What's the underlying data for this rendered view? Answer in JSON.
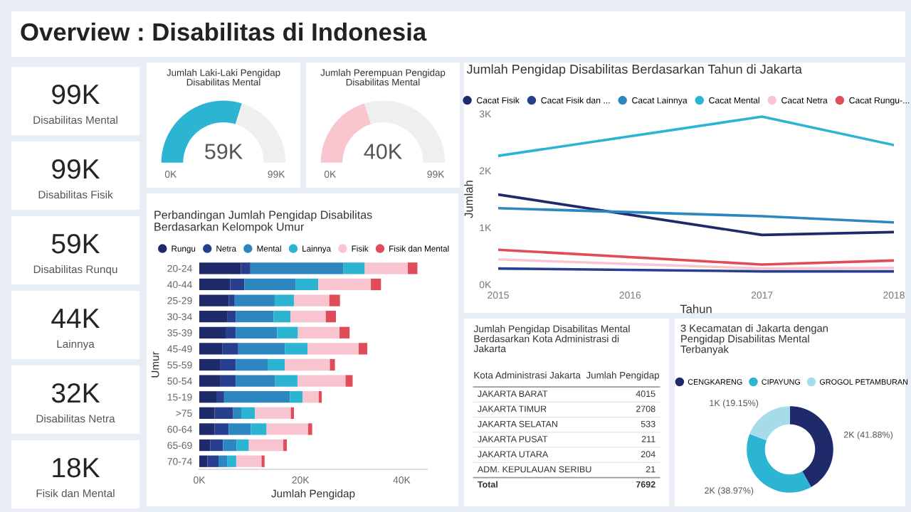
{
  "chart_data": [
    {
      "type": "other",
      "title": "Overview : Disabilitas di Indonesia",
      "categories": [
        "Disabilitas Mental",
        "Disabilitas Fisik",
        "Disabilitas Runqu",
        "Lainnya",
        "Disabilitas Netra",
        "Fisik dan Mental"
      ],
      "value_labels": [
        "99K",
        "99K",
        "59K",
        "44K",
        "32K",
        "18K"
      ]
    },
    {
      "type": "donut",
      "title": "Jumlah Laki-Laki Pengidap\nDisabilitas Mental",
      "categories": [
        null,
        null
      ],
      "values": [
        59,
        40
      ],
      "colors": [
        "#2cb5d3",
        "#efefef"
      ],
      "annotations": [
        "59K",
        "0K",
        "99K"
      ]
    },
    {
      "type": "donut",
      "title": "Jumlah Perempuan Pengidap\nDisabilitas Mental",
      "categories": [
        null,
        null
      ],
      "values": [
        40,
        59
      ],
      "colors": [
        "#f9c6d0",
        "#efefef"
      ],
      "annotations": [
        "40K",
        "0K",
        "99K"
      ]
    },
    {
      "type": "bar",
      "orientation": "horizontal",
      "stacked": true,
      "title": "Perbandingan Jumlah Pengidap Disabilitas\nBerdasarkan Kelompok Umur",
      "xlabel": "Jumlah Pengidap",
      "ylabel": "Umur",
      "legend": "top left",
      "categories": [
        "20-24",
        "40-44",
        "25-29",
        "30-34",
        "35-39",
        "45-49",
        "55-59",
        "50-54",
        "15-19",
        ">75",
        "60-64",
        "65-69",
        "70-74"
      ],
      "xlim": [
        0,
        45000
      ],
      "xticks": [
        {
          "value": 0,
          "label": "0K"
        },
        {
          "value": 20000,
          "label": "20K"
        },
        {
          "value": 40000,
          "label": "40K"
        }
      ],
      "series": [
        {
          "name": "Rungu",
          "color": "#1f2a6b",
          "values": [
            8200,
            6100,
            5800,
            5600,
            5200,
            4600,
            4200,
            4200,
            3500,
            3000,
            3000,
            2200,
            1600
          ]
        },
        {
          "name": "Netra",
          "color": "#283f8f",
          "values": [
            1900,
            2800,
            1200,
            1600,
            2000,
            3100,
            3000,
            3000,
            1400,
            3700,
            2800,
            2500,
            2200
          ]
        },
        {
          "name": "Mental",
          "color": "#2e86c1",
          "values": [
            18400,
            10100,
            7900,
            7500,
            8200,
            9200,
            6300,
            7800,
            13000,
            1600,
            4400,
            2700,
            1700
          ]
        },
        {
          "name": "Lainnya",
          "color": "#2cb5d3",
          "values": [
            4200,
            4500,
            3800,
            3300,
            4100,
            4500,
            3400,
            4400,
            2500,
            2700,
            3100,
            2400,
            1800
          ]
        },
        {
          "name": "Fisik",
          "color": "#f8c4cf",
          "values": [
            8500,
            10400,
            7000,
            7000,
            8200,
            10100,
            8900,
            9500,
            3200,
            7100,
            8200,
            6800,
            5000
          ]
        },
        {
          "name": "Fisik dan Mental",
          "color": "#e04c5a",
          "values": [
            1900,
            2000,
            2100,
            2000,
            2000,
            1700,
            1000,
            1400,
            600,
            600,
            800,
            700,
            600
          ]
        }
      ]
    },
    {
      "type": "line",
      "title": "Jumlah Pengidap Disabilitas Berdasarkan Tahun di Jakarta",
      "xlabel": "Tahun",
      "ylabel": "Jumlah",
      "legend": "top",
      "x": [
        2015,
        2017,
        2018
      ],
      "xlim": [
        2015,
        2018
      ],
      "xticks": [
        2015,
        2016,
        2017,
        2018
      ],
      "ylim": [
        0,
        3000
      ],
      "yticks": [
        {
          "value": 0,
          "label": "0K"
        },
        {
          "value": 1000,
          "label": "1K"
        },
        {
          "value": 2000,
          "label": "2K"
        },
        {
          "value": 3000,
          "label": "3K"
        }
      ],
      "series": [
        {
          "name": "Cacat Fisik",
          "color": "#1f2a6b",
          "values": [
            1580,
            870,
            920
          ]
        },
        {
          "name": "Cacat Fisik dan ...",
          "color": "#283f8f",
          "values": [
            280,
            230,
            230
          ]
        },
        {
          "name": "Cacat Lainnya",
          "color": "#2e86c1",
          "values": [
            1340,
            1200,
            1090
          ]
        },
        {
          "name": "Cacat Mental",
          "color": "#2cb5d3",
          "values": [
            2260,
            2950,
            2450
          ]
        },
        {
          "name": "Cacat Netra",
          "color": "#f8c4cf",
          "values": [
            440,
            280,
            290
          ]
        },
        {
          "name": "Cacat Rungu-...",
          "color": "#e04c5a",
          "values": [
            610,
            350,
            420
          ]
        }
      ]
    },
    {
      "type": "other",
      "title": "Jumlah Pengidap Disabilitas Mental\nBerdasarkan Kota Administrasi di\nJakarta",
      "xlabel": "Kota Administrasi Jakarta",
      "ylabel": "Jumlah Pengidap",
      "categories": [
        "JAKARTA BARAT",
        "JAKARTA TIMUR",
        "JAKARTA SELATAN",
        "JAKARTA PUSAT",
        "JAKARTA UTARA",
        "ADM. KEPULAUAN SERIBU"
      ],
      "values": [
        4015,
        2708,
        533,
        211,
        204,
        21
      ],
      "data_labels": true,
      "annotations": [
        "Total"
      ],
      "totals": [
        "7692"
      ]
    },
    {
      "type": "donut",
      "title": "3 Kecamatan di Jakarta dengan\nPengidap Disabilitas Mental\nTerbanyak",
      "legend": "top",
      "categories": [
        "CENGKARENG",
        "CIPAYUNG",
        "GROGOL PETAMBURAN"
      ],
      "values": [
        41.88,
        38.97,
        19.15
      ],
      "colors": [
        "#1f2a6b",
        "#2cb5d3",
        "#a6dcea"
      ],
      "value_labels": [
        "2K (41.88%)",
        "2K (38.97%)",
        "1K (19.15%)"
      ]
    }
  ]
}
